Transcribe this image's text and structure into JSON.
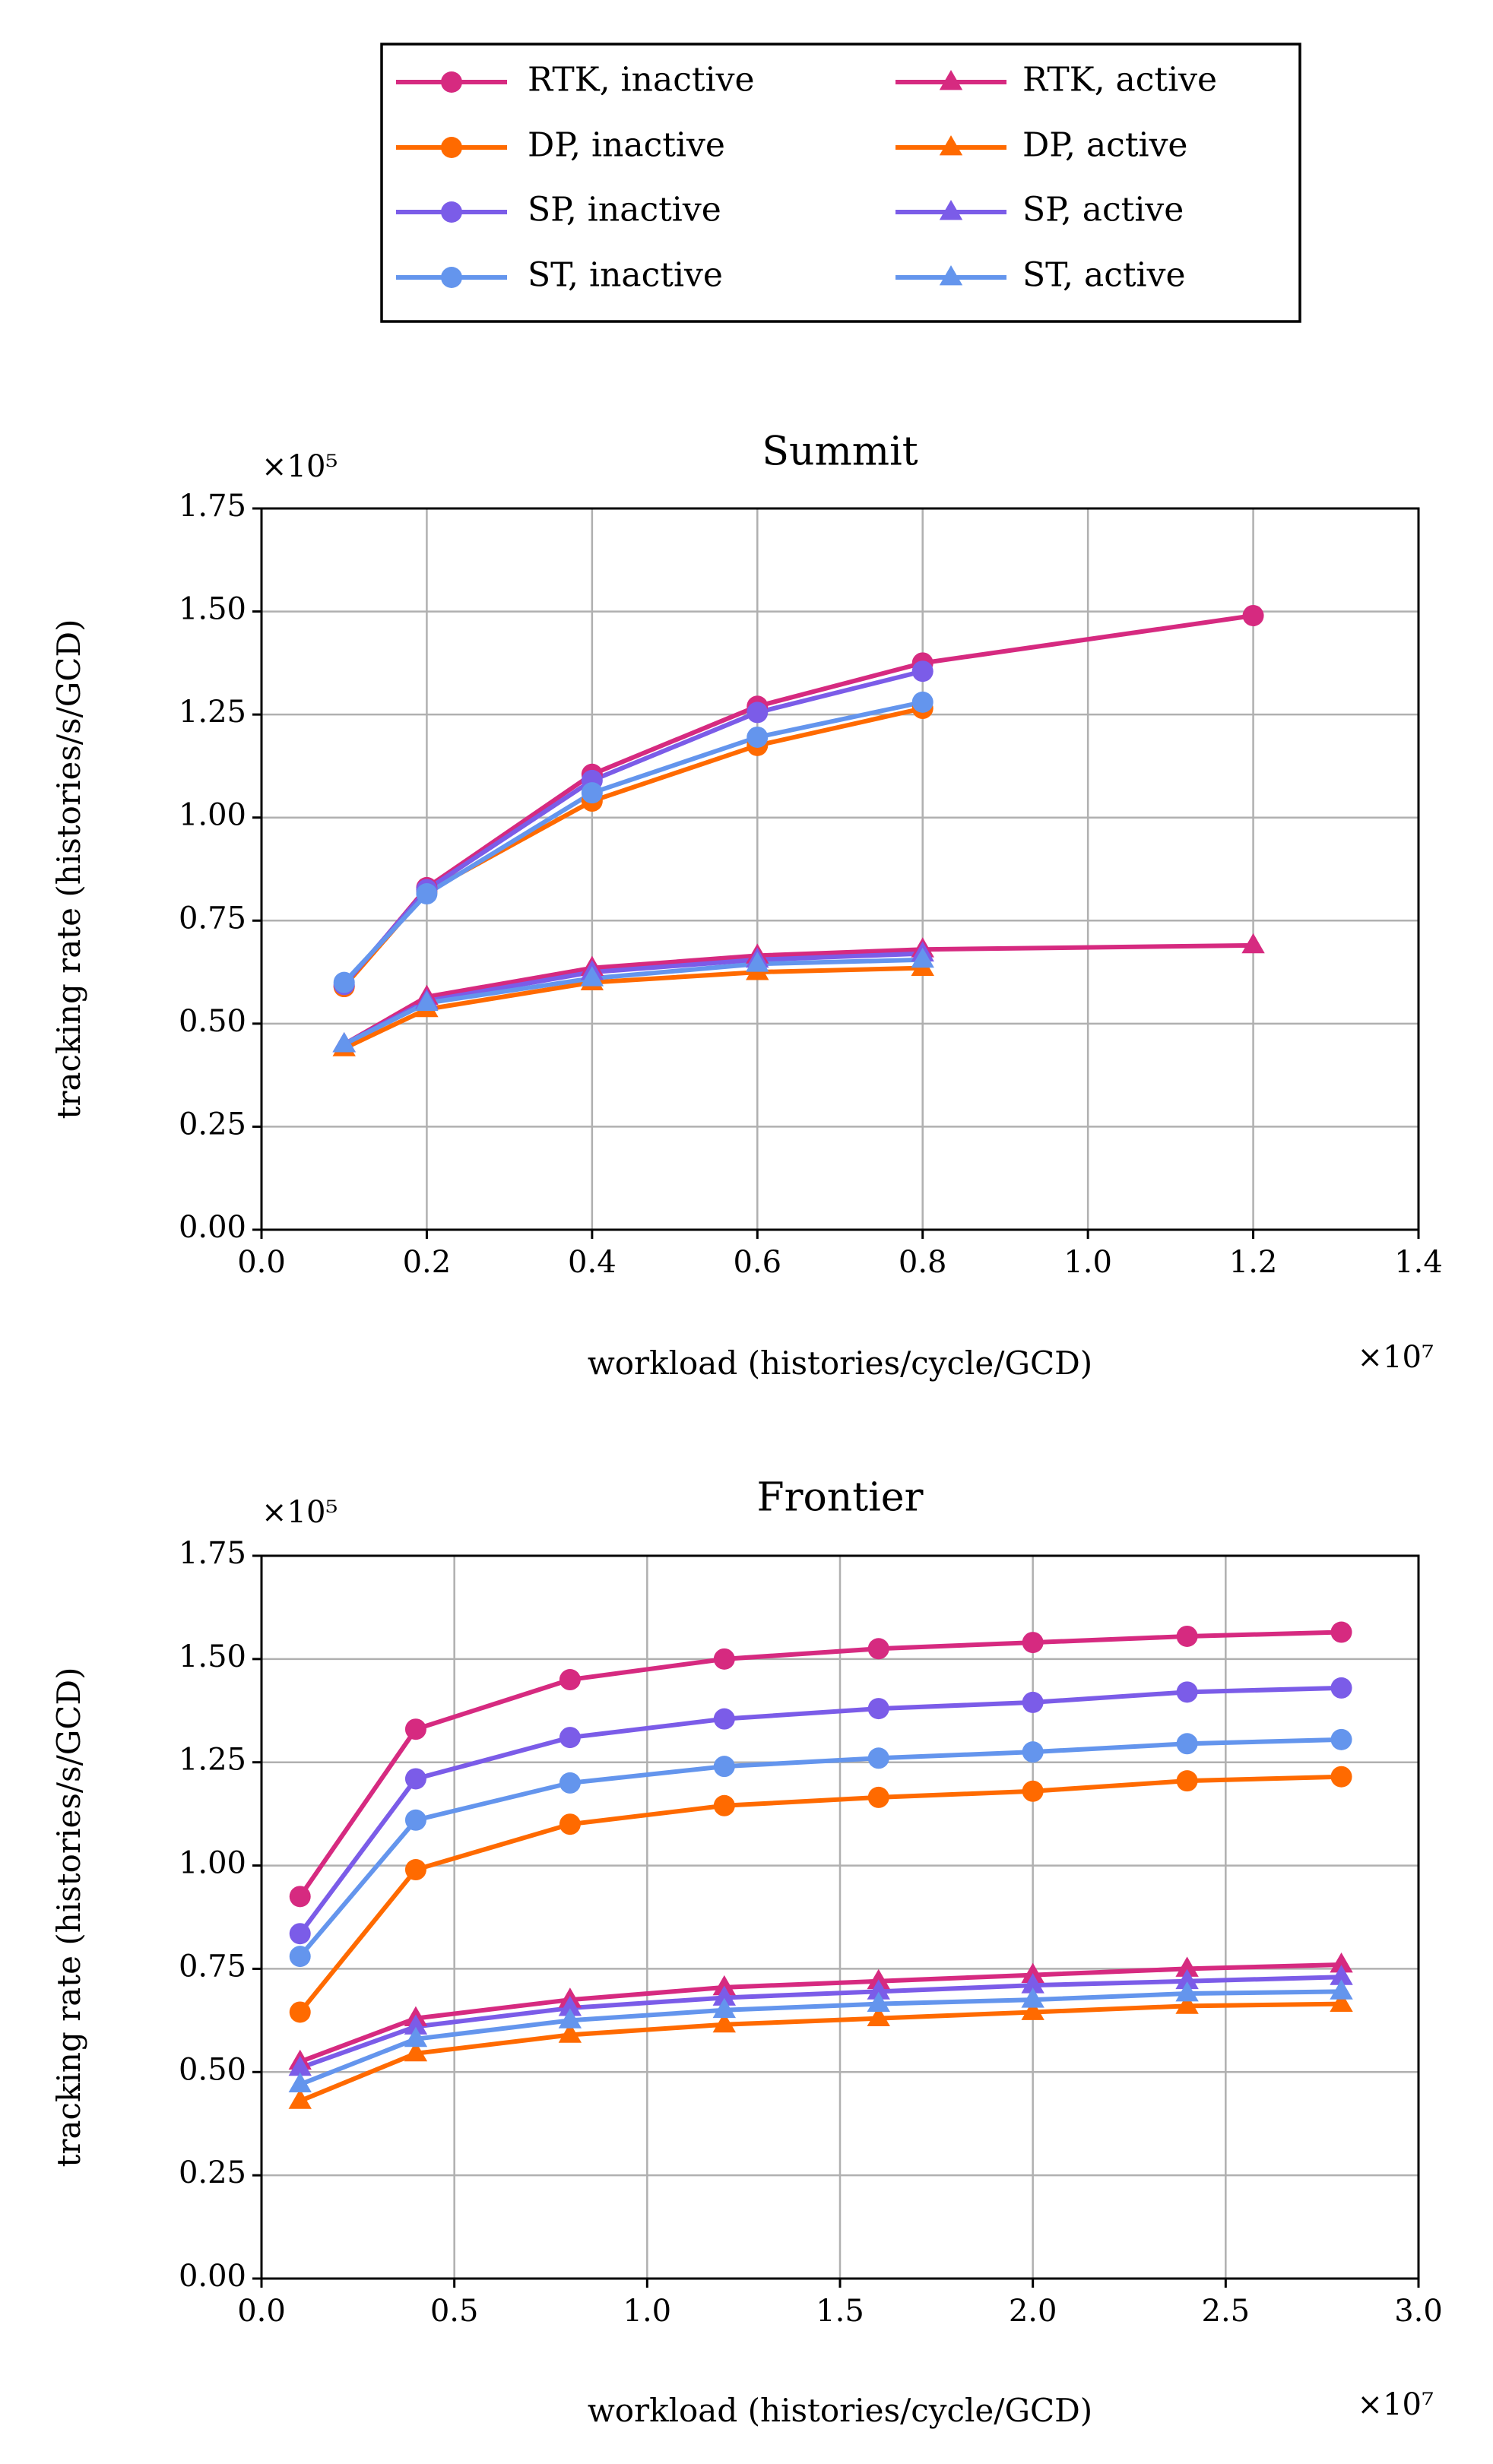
{
  "chart_data": [
    {
      "type": "line",
      "title": "Summit",
      "xlabel": "workload (histories/cycle/GCD)",
      "ylabel": "tracking rate (histories/s/GCD)",
      "x_multiplier": "×10⁷",
      "y_multiplier": "×10⁵",
      "grid": true,
      "x": [
        0.1,
        0.2,
        0.4,
        0.6,
        0.8,
        1.2
      ],
      "xlim": [
        0,
        1.4
      ],
      "xticks": [
        {
          "value": 0,
          "label": "0.0"
        },
        0.2,
        0.4,
        0.6,
        0.8,
        {
          "value": 1,
          "label": "1.0"
        },
        1.2,
        1.4
      ],
      "ylim": [
        0,
        1.75
      ],
      "yticks": [
        {
          "value": 0,
          "label": "0.00"
        },
        0.25,
        {
          "value": 0.5,
          "label": "0.50"
        },
        0.75,
        {
          "value": 1,
          "label": "1.00"
        },
        1.25,
        {
          "value": 1.5,
          "label": "1.50"
        },
        1.75
      ],
      "series": [
        {
          "name": "RTK, inactive",
          "color": "#d62a80",
          "marker": "circle",
          "values": [
            0.59,
            0.83,
            1.105,
            1.27,
            1.375,
            1.49
          ]
        },
        {
          "name": "DP, inactive",
          "color": "#ff6a00",
          "marker": "circle",
          "values": [
            0.59,
            0.82,
            1.04,
            1.175,
            1.265,
            null
          ]
        },
        {
          "name": "SP, inactive",
          "color": "#7b5ce8",
          "marker": "circle",
          "values": [
            0.595,
            0.825,
            1.09,
            1.255,
            1.355,
            null
          ]
        },
        {
          "name": "ST, inactive",
          "color": "#6495ed",
          "marker": "circle",
          "values": [
            0.6,
            0.815,
            1.06,
            1.195,
            1.28,
            null
          ]
        },
        {
          "name": "RTK, active",
          "color": "#d62a80",
          "marker": "triangle",
          "values": [
            0.45,
            0.565,
            0.635,
            0.665,
            0.68,
            0.69
          ]
        },
        {
          "name": "DP, active",
          "color": "#ff6a00",
          "marker": "triangle",
          "values": [
            0.44,
            0.535,
            0.6,
            0.625,
            0.635,
            null
          ]
        },
        {
          "name": "SP, active",
          "color": "#7b5ce8",
          "marker": "triangle",
          "values": [
            0.45,
            0.555,
            0.625,
            0.655,
            0.67,
            null
          ]
        },
        {
          "name": "ST, active",
          "color": "#6495ed",
          "marker": "triangle",
          "values": [
            0.45,
            0.55,
            0.61,
            0.645,
            0.655,
            null
          ]
        }
      ]
    },
    {
      "type": "line",
      "title": "Frontier",
      "xlabel": "workload (histories/cycle/GCD)",
      "ylabel": "tracking rate (histories/s/GCD)",
      "x_multiplier": "×10⁷",
      "y_multiplier": "×10⁵",
      "grid": true,
      "x": [
        0.1,
        0.4,
        0.8,
        1.2,
        1.6,
        2.0,
        2.4,
        2.8
      ],
      "xlim": [
        0,
        3
      ],
      "xticks": [
        {
          "value": 0,
          "label": "0.0"
        },
        0.5,
        {
          "value": 1,
          "label": "1.0"
        },
        1.5,
        {
          "value": 2,
          "label": "2.0"
        },
        2.5,
        {
          "value": 3,
          "label": "3.0"
        }
      ],
      "ylim": [
        0,
        1.75
      ],
      "yticks": [
        {
          "value": 0,
          "label": "0.00"
        },
        0.25,
        {
          "value": 0.5,
          "label": "0.50"
        },
        0.75,
        {
          "value": 1,
          "label": "1.00"
        },
        1.25,
        {
          "value": 1.5,
          "label": "1.50"
        },
        1.75
      ],
      "series": [
        {
          "name": "RTK, inactive",
          "color": "#d62a80",
          "marker": "circle",
          "values": [
            0.925,
            1.33,
            1.45,
            1.5,
            1.525,
            1.54,
            1.555,
            1.565
          ]
        },
        {
          "name": "DP, inactive",
          "color": "#ff6a00",
          "marker": "circle",
          "values": [
            0.645,
            0.99,
            1.1,
            1.145,
            1.165,
            1.18,
            1.205,
            1.215
          ]
        },
        {
          "name": "SP, inactive",
          "color": "#7b5ce8",
          "marker": "circle",
          "values": [
            0.835,
            1.21,
            1.31,
            1.355,
            1.38,
            1.395,
            1.42,
            1.43
          ]
        },
        {
          "name": "ST, inactive",
          "color": "#6495ed",
          "marker": "circle",
          "values": [
            0.78,
            1.11,
            1.2,
            1.24,
            1.26,
            1.275,
            1.295,
            1.305
          ]
        },
        {
          "name": "RTK, active",
          "color": "#d62a80",
          "marker": "triangle",
          "values": [
            0.525,
            0.63,
            0.675,
            0.705,
            0.72,
            0.735,
            0.75,
            0.76
          ]
        },
        {
          "name": "DP, active",
          "color": "#ff6a00",
          "marker": "triangle",
          "values": [
            0.43,
            0.545,
            0.59,
            0.615,
            0.63,
            0.645,
            0.66,
            0.665
          ]
        },
        {
          "name": "SP, active",
          "color": "#7b5ce8",
          "marker": "triangle",
          "values": [
            0.51,
            0.61,
            0.655,
            0.68,
            0.695,
            0.71,
            0.72,
            0.73
          ]
        },
        {
          "name": "ST, active",
          "color": "#6495ed",
          "marker": "triangle",
          "values": [
            0.47,
            0.58,
            0.625,
            0.65,
            0.665,
            0.675,
            0.69,
            0.695
          ]
        }
      ]
    }
  ]
}
